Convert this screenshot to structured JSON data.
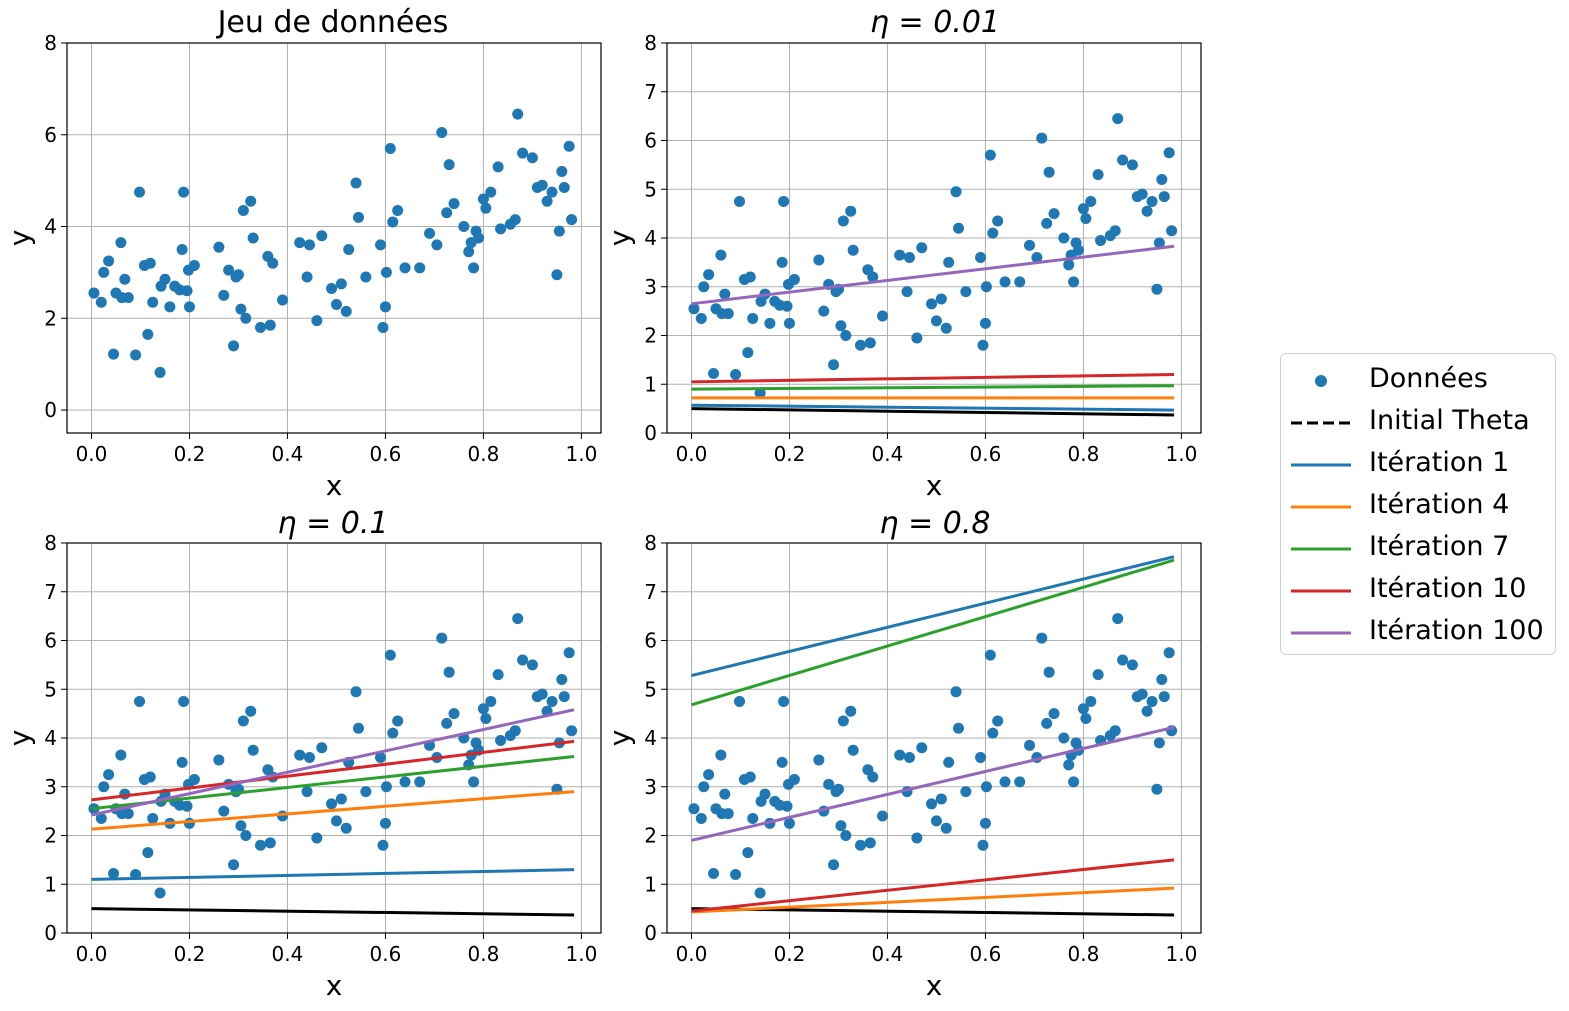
{
  "figure": {
    "legend_placement": "right-center"
  },
  "legend": [
    {
      "label": "Données",
      "marker": "dot",
      "color": "#1f77b4"
    },
    {
      "label": "Initial Theta",
      "marker": "dashed-line",
      "color": "#000000"
    },
    {
      "label": "Itération 1",
      "marker": "line",
      "color": "#1f77b4"
    },
    {
      "label": "Itération 4",
      "marker": "line",
      "color": "#ff7f0e"
    },
    {
      "label": "Itération 7",
      "marker": "line",
      "color": "#2ca02c"
    },
    {
      "label": "Itération 10",
      "marker": "line",
      "color": "#d62728"
    },
    {
      "label": "Itération 100",
      "marker": "line",
      "color": "#9467bd"
    }
  ],
  "scatter_x": [
    0.005,
    0.02,
    0.025,
    0.035,
    0.045,
    0.05,
    0.06,
    0.062,
    0.068,
    0.075,
    0.09,
    0.098,
    0.108,
    0.115,
    0.12,
    0.125,
    0.14,
    0.142,
    0.15,
    0.16,
    0.17,
    0.18,
    0.185,
    0.188,
    0.195,
    0.198,
    0.2,
    0.21,
    0.26,
    0.27,
    0.28,
    0.29,
    0.295,
    0.3,
    0.305,
    0.31,
    0.315,
    0.325,
    0.33,
    0.345,
    0.36,
    0.365,
    0.37,
    0.39,
    0.425,
    0.44,
    0.445,
    0.46,
    0.47,
    0.49,
    0.5,
    0.51,
    0.52,
    0.525,
    0.54,
    0.545,
    0.56,
    0.59,
    0.595,
    0.6,
    0.602,
    0.61,
    0.615,
    0.625,
    0.64,
    0.67,
    0.69,
    0.705,
    0.715,
    0.725,
    0.73,
    0.74,
    0.76,
    0.77,
    0.775,
    0.78,
    0.785,
    0.79,
    0.8,
    0.805,
    0.815,
    0.83,
    0.835,
    0.855,
    0.865,
    0.87,
    0.88,
    0.9,
    0.91,
    0.92,
    0.93,
    0.94,
    0.95,
    0.955,
    0.96,
    0.965,
    0.975,
    0.98
  ],
  "scatter_y": [
    2.55,
    2.35,
    3.0,
    3.25,
    1.22,
    2.55,
    3.65,
    2.45,
    2.85,
    2.45,
    1.2,
    4.75,
    3.15,
    1.65,
    3.2,
    2.35,
    0.82,
    2.7,
    2.85,
    2.25,
    2.7,
    2.62,
    3.5,
    4.75,
    2.6,
    3.05,
    2.25,
    3.15,
    3.55,
    2.5,
    3.05,
    1.4,
    2.9,
    2.95,
    2.2,
    4.35,
    2.0,
    4.55,
    3.75,
    1.8,
    3.35,
    1.85,
    3.2,
    2.4,
    3.65,
    2.9,
    3.6,
    1.95,
    3.8,
    2.65,
    2.3,
    2.75,
    2.15,
    3.5,
    4.95,
    4.2,
    2.9,
    3.6,
    1.8,
    2.25,
    3.0,
    5.7,
    4.1,
    4.35,
    3.1,
    3.1,
    3.85,
    3.6,
    6.05,
    4.3,
    5.35,
    4.5,
    4.0,
    3.45,
    3.65,
    3.1,
    3.9,
    3.75,
    4.6,
    4.4,
    4.75,
    5.3,
    3.95,
    4.05,
    4.15,
    6.45,
    5.6,
    5.5,
    4.85,
    4.9,
    4.55,
    4.75,
    2.95,
    3.9,
    5.2,
    4.85,
    5.75,
    4.15
  ],
  "titles": {
    "dataset": "Jeu de données",
    "eta_001": "η = 0.01",
    "eta_01": "η = 0.1",
    "eta_08": "η = 0.8"
  },
  "chart_data": [
    {
      "type": "scatter",
      "title": "Jeu de données",
      "xlabel": "x",
      "ylabel": "y",
      "xlim": [
        -0.05,
        1.04
      ],
      "ylim": [
        -0.5,
        8
      ],
      "xticks": [
        "0.0",
        "0.2",
        "0.4",
        "0.6",
        "0.8",
        "1.0"
      ],
      "yticks": [
        "0",
        "2",
        "4",
        "6",
        "8"
      ],
      "grid": true,
      "series": [
        {
          "name": "Données",
          "kind": "scatter"
        }
      ]
    },
    {
      "type": "line",
      "title": "η = 0.01",
      "xlabel": "x",
      "ylabel": "y",
      "xlim": [
        -0.05,
        1.04
      ],
      "ylim": [
        0,
        8
      ],
      "xticks": [
        "0.0",
        "0.2",
        "0.4",
        "0.6",
        "0.8",
        "1.0"
      ],
      "yticks": [
        "0",
        "1",
        "2",
        "3",
        "4",
        "5",
        "6",
        "7",
        "8"
      ],
      "grid": true,
      "series": [
        {
          "name": "Données",
          "kind": "scatter"
        },
        {
          "name": "Initial Theta",
          "x": [
            0.0,
            0.985
          ],
          "y": [
            0.5,
            0.37
          ]
        },
        {
          "name": "Itération 1",
          "x": [
            0.0,
            0.985
          ],
          "y": [
            0.57,
            0.47
          ]
        },
        {
          "name": "Itération 4",
          "x": [
            0.0,
            0.985
          ],
          "y": [
            0.72,
            0.72
          ]
        },
        {
          "name": "Itération 7",
          "x": [
            0.0,
            0.985
          ],
          "y": [
            0.9,
            0.97
          ]
        },
        {
          "name": "Itération 10",
          "x": [
            0.0,
            0.985
          ],
          "y": [
            1.05,
            1.2
          ]
        },
        {
          "name": "Itération 100",
          "x": [
            0.0,
            0.985
          ],
          "y": [
            2.65,
            3.83
          ]
        }
      ]
    },
    {
      "type": "line",
      "title": "η = 0.1",
      "xlabel": "x",
      "ylabel": "y",
      "xlim": [
        -0.05,
        1.04
      ],
      "ylim": [
        0,
        8
      ],
      "xticks": [
        "0.0",
        "0.2",
        "0.4",
        "0.6",
        "0.8",
        "1.0"
      ],
      "yticks": [
        "0",
        "1",
        "2",
        "3",
        "4",
        "5",
        "6",
        "7",
        "8"
      ],
      "grid": true,
      "series": [
        {
          "name": "Données",
          "kind": "scatter"
        },
        {
          "name": "Initial Theta",
          "x": [
            0.0,
            0.985
          ],
          "y": [
            0.5,
            0.37
          ]
        },
        {
          "name": "Itération 1",
          "x": [
            0.0,
            0.985
          ],
          "y": [
            1.1,
            1.3
          ]
        },
        {
          "name": "Itération 4",
          "x": [
            0.0,
            0.985
          ],
          "y": [
            2.13,
            2.9
          ]
        },
        {
          "name": "Itération 7",
          "x": [
            0.0,
            0.985
          ],
          "y": [
            2.55,
            3.62
          ]
        },
        {
          "name": "Itération 10",
          "x": [
            0.0,
            0.985
          ],
          "y": [
            2.73,
            3.93
          ]
        },
        {
          "name": "Itération 100",
          "x": [
            0.0,
            0.985
          ],
          "y": [
            2.42,
            4.58
          ]
        }
      ]
    },
    {
      "type": "line",
      "title": "η = 0.8",
      "xlabel": "x",
      "ylabel": "y",
      "xlim": [
        -0.05,
        1.04
      ],
      "ylim": [
        0,
        8
      ],
      "xticks": [
        "0.0",
        "0.2",
        "0.4",
        "0.6",
        "0.8",
        "1.0"
      ],
      "yticks": [
        "0",
        "1",
        "2",
        "3",
        "4",
        "5",
        "6",
        "7",
        "8"
      ],
      "grid": true,
      "series": [
        {
          "name": "Données",
          "kind": "scatter"
        },
        {
          "name": "Initial Theta",
          "x": [
            0.0,
            0.985
          ],
          "y": [
            0.5,
            0.37
          ]
        },
        {
          "name": "Itération 1",
          "x": [
            0.0,
            0.985
          ],
          "y": [
            5.28,
            7.72
          ]
        },
        {
          "name": "Itération 4",
          "x": [
            0.0,
            0.985
          ],
          "y": [
            0.43,
            0.92
          ]
        },
        {
          "name": "Itération 7",
          "x": [
            0.0,
            0.985
          ],
          "y": [
            4.68,
            7.65
          ]
        },
        {
          "name": "Itération 10",
          "x": [
            0.0,
            0.985
          ],
          "y": [
            0.45,
            1.5
          ]
        },
        {
          "name": "Itération 100",
          "x": [
            0.0,
            0.985
          ],
          "y": [
            1.9,
            4.22
          ]
        }
      ]
    }
  ]
}
